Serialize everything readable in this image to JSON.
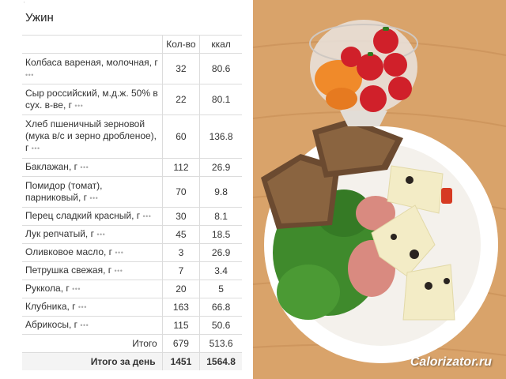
{
  "title": "Ужин",
  "corner_mark": "'",
  "table": {
    "header": {
      "qty": "Кол-во",
      "kcal": "ккал"
    },
    "rows": [
      {
        "name": "Колбаса вареная, молочная, г",
        "qty": "32",
        "kcal": "80.6"
      },
      {
        "name": "Сыр российский, м.д.ж. 50% в сух. в-ве, г",
        "qty": "22",
        "kcal": "80.1"
      },
      {
        "name": "Хлеб пшеничный зерновой (мука в/с и зерно дробленое), г",
        "qty": "60",
        "kcal": "136.8"
      },
      {
        "name": "Баклажан, г",
        "qty": "112",
        "kcal": "26.9"
      },
      {
        "name": "Помидор (томат), парниковый, г",
        "qty": "70",
        "kcal": "9.8"
      },
      {
        "name": "Перец сладкий красный, г",
        "qty": "30",
        "kcal": "8.1"
      },
      {
        "name": "Лук репчатый, г",
        "qty": "45",
        "kcal": "18.5"
      },
      {
        "name": "Оливковое масло, г",
        "qty": "3",
        "kcal": "26.9"
      },
      {
        "name": "Петрушка свежая, г",
        "qty": "7",
        "kcal": "3.4"
      },
      {
        "name": "Руккола, г",
        "qty": "20",
        "kcal": "5"
      },
      {
        "name": "Клубника, г",
        "qty": "163",
        "kcal": "66.8"
      },
      {
        "name": "Абрикосы, г",
        "qty": "115",
        "kcal": "50.6"
      }
    ],
    "row_more_glyph": "•••",
    "total": {
      "label": "Итого",
      "qty": "679",
      "kcal": "513.6"
    },
    "day_total": {
      "label": "Итого за день",
      "qty": "1451",
      "kcal": "1564.8"
    }
  },
  "photo": {
    "watermark": "Calorizator.ru"
  },
  "colors": {
    "wood": "#d9a36a",
    "plate": "#ffffff",
    "strawberry": "#d0202a",
    "apricot": "#f08a2a",
    "bread": "#6b4a30",
    "arugula": "#3f8a2c",
    "cheese": "#f3ecc6",
    "sausage": "#d98a80"
  }
}
